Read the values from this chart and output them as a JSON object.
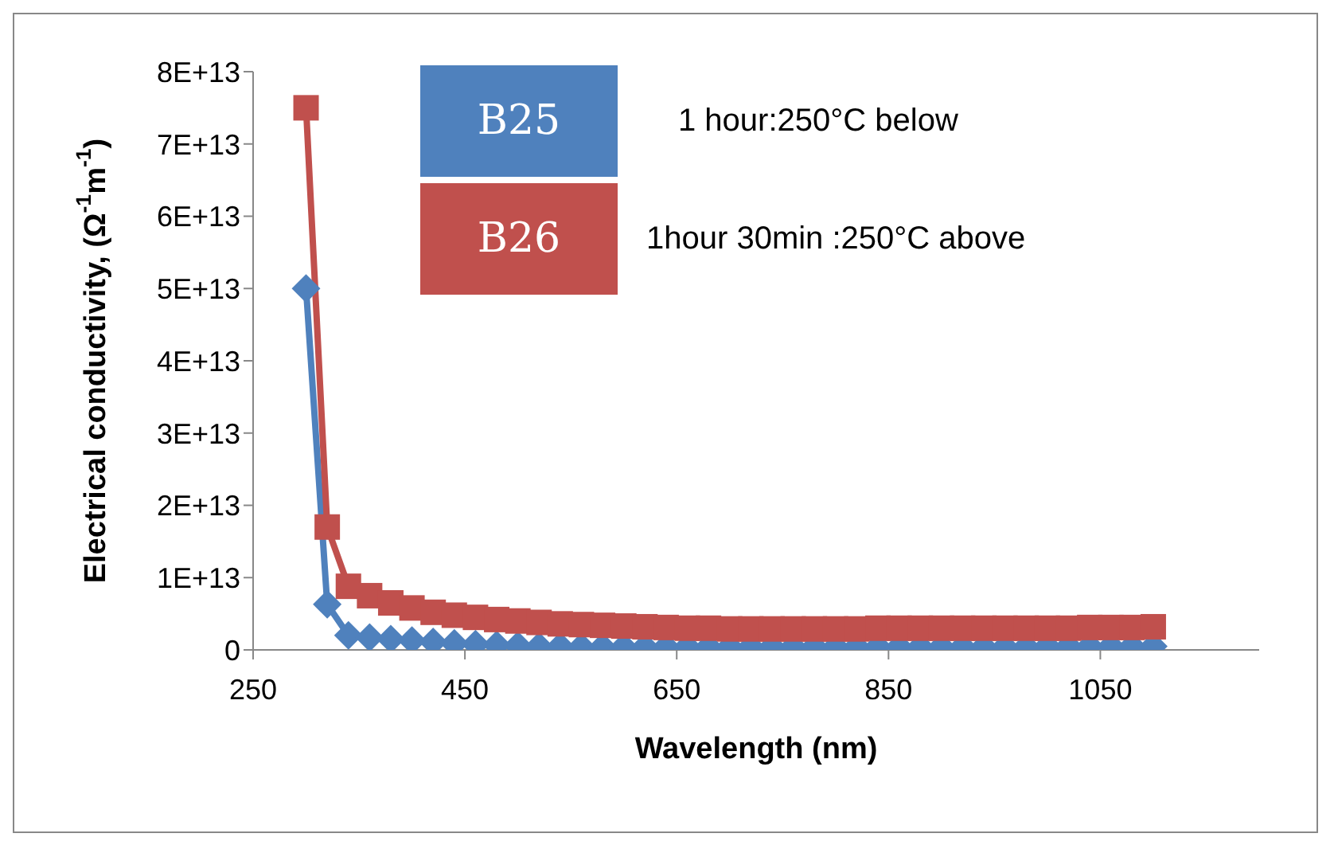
{
  "chart_data": {
    "type": "line",
    "xlabel": "Wavelength (nm)",
    "ylabel": "Electrical conductivity, (Ω$^{-1}$m$^{-1}$)",
    "x": [
      300,
      320,
      340,
      360,
      380,
      400,
      420,
      440,
      460,
      480,
      500,
      520,
      540,
      560,
      580,
      600,
      620,
      640,
      660,
      680,
      700,
      720,
      740,
      760,
      780,
      800,
      820,
      840,
      860,
      880,
      900,
      920,
      940,
      960,
      980,
      1000,
      1020,
      1040,
      1060,
      1080,
      1100
    ],
    "series": [
      {
        "name": "B25",
        "color": "#4f81bd",
        "marker": "diamond",
        "values": [
          50000000000000,
          6300000000000,
          2000000000000,
          1700000000000,
          1500000000000,
          1300000000000,
          1100000000000,
          900000000000,
          800000000000,
          700000000000,
          600000000000,
          500000000000,
          500000000000,
          400000000000,
          400000000000,
          400000000000,
          400000000000,
          400000000000,
          400000000000,
          400000000000,
          400000000000,
          400000000000,
          400000000000,
          400000000000,
          400000000000,
          400000000000,
          400000000000,
          400000000000,
          400000000000,
          400000000000,
          400000000000,
          400000000000,
          400000000000,
          400000000000,
          400000000000,
          500000000000,
          500000000000,
          500000000000,
          500000000000,
          500000000000,
          500000000000
        ]
      },
      {
        "name": "B26",
        "color": "#c0504d",
        "marker": "square",
        "values": [
          75000000000000,
          17000000000000,
          8800000000000,
          7500000000000,
          6500000000000,
          5800000000000,
          5200000000000,
          4800000000000,
          4500000000000,
          4200000000000,
          4000000000000,
          3800000000000,
          3600000000000,
          3500000000000,
          3400000000000,
          3300000000000,
          3200000000000,
          3100000000000,
          3000000000000,
          3000000000000,
          2900000000000,
          2900000000000,
          2900000000000,
          2900000000000,
          2900000000000,
          2900000000000,
          2900000000000,
          3000000000000,
          3000000000000,
          3000000000000,
          3000000000000,
          3000000000000,
          3000000000000,
          3000000000000,
          3000000000000,
          3000000000000,
          3000000000000,
          3100000000000,
          3100000000000,
          3100000000000,
          3200000000000
        ]
      }
    ],
    "annotations": [
      "1 hour:250°C below",
      "1hour 30min :250°C above"
    ],
    "legend": "top",
    "grid": false,
    "line_style": "solid",
    "xlim": [
      250,
      1200
    ],
    "xticks": [
      250,
      450,
      650,
      850,
      1050
    ],
    "ylim": [
      0,
      80000000000000
    ],
    "yticks": [
      0,
      {
        "value": 10000000000000,
        "label": "1E+13"
      },
      {
        "value": 20000000000000,
        "label": "2E+13"
      },
      {
        "value": 30000000000000,
        "label": "3E+13"
      },
      {
        "value": 40000000000000,
        "label": "4E+13"
      },
      {
        "value": 50000000000000,
        "label": "5E+13"
      },
      {
        "value": 60000000000000,
        "label": "6E+13"
      },
      {
        "value": 70000000000000,
        "label": "7E+13"
      },
      {
        "value": 80000000000000,
        "label": "8E+13"
      }
    ]
  }
}
